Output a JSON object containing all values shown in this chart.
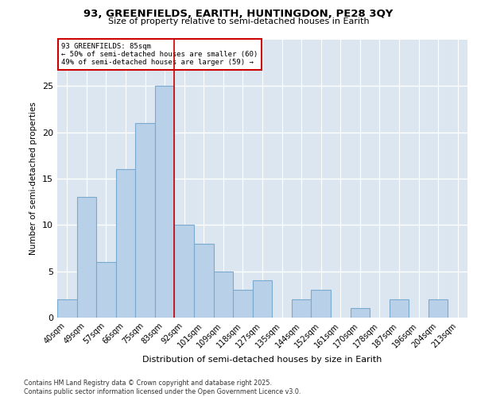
{
  "title_line1": "93, GREENFIELDS, EARITH, HUNTINGDON, PE28 3QY",
  "title_line2": "Size of property relative to semi-detached houses in Earith",
  "xlabel": "Distribution of semi-detached houses by size in Earith",
  "ylabel": "Number of semi-detached properties",
  "bar_labels": [
    "40sqm",
    "49sqm",
    "57sqm",
    "66sqm",
    "75sqm",
    "83sqm",
    "92sqm",
    "101sqm",
    "109sqm",
    "118sqm",
    "127sqm",
    "135sqm",
    "144sqm",
    "152sqm",
    "161sqm",
    "170sqm",
    "178sqm",
    "187sqm",
    "196sqm",
    "204sqm",
    "213sqm"
  ],
  "bar_values": [
    2,
    13,
    6,
    16,
    21,
    25,
    10,
    8,
    5,
    3,
    4,
    0,
    2,
    3,
    0,
    1,
    0,
    2,
    0,
    2,
    0
  ],
  "bar_color": "#b8d0e8",
  "bar_edge_color": "#7aaace",
  "property_label": "93 GREENFIELDS: 85sqm",
  "annotation_line1": "← 50% of semi-detached houses are smaller (60)",
  "annotation_line2": "49% of semi-detached houses are larger (59) →",
  "red_line_x": 5.5,
  "ylim": [
    0,
    30
  ],
  "yticks": [
    0,
    5,
    10,
    15,
    20,
    25
  ],
  "background_color": "#dce6f0",
  "grid_color": "#ffffff",
  "fig_background": "#ffffff",
  "footer_line1": "Contains HM Land Registry data © Crown copyright and database right 2025.",
  "footer_line2": "Contains public sector information licensed under the Open Government Licence v3.0."
}
